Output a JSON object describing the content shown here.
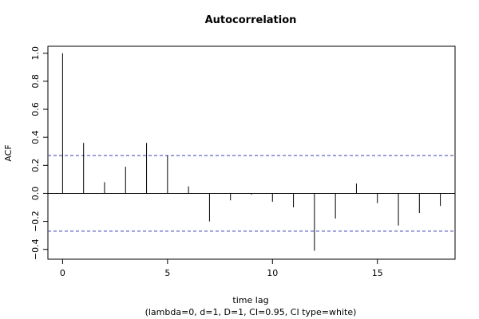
{
  "chart_data": {
    "type": "bar",
    "title": "Autocorrelation",
    "xlabel": "time lag",
    "subtitle": "(lambda=0, d=1, D=1, CI=0.95, CI type=white)",
    "ylabel": "ACF",
    "x": [
      0,
      1,
      2,
      3,
      4,
      5,
      6,
      7,
      8,
      9,
      10,
      11,
      12,
      13,
      14,
      15,
      16,
      17,
      18
    ],
    "values": [
      1.0,
      0.36,
      0.08,
      0.19,
      0.36,
      0.27,
      0.05,
      -0.2,
      -0.05,
      -0.01,
      -0.06,
      -0.1,
      -0.41,
      -0.18,
      0.07,
      -0.07,
      -0.23,
      -0.14,
      -0.09
    ],
    "xlim": [
      -0.7,
      18.7
    ],
    "ylim": [
      -0.47,
      1.05
    ],
    "xticks": [
      0,
      5,
      10,
      15
    ],
    "yticks": [
      -0.4,
      -0.2,
      0.0,
      0.2,
      0.4,
      0.6,
      0.8,
      1.0
    ],
    "yticklabels": [
      "−0.4",
      "−0.2",
      "0.0",
      "0.2",
      "0.4",
      "0.6",
      "0.8",
      "1.0"
    ],
    "confidence_bounds": [
      0.27,
      -0.27
    ],
    "confidence_color": "#3b3bb3",
    "bar_color": "#000000",
    "grid": false
  }
}
